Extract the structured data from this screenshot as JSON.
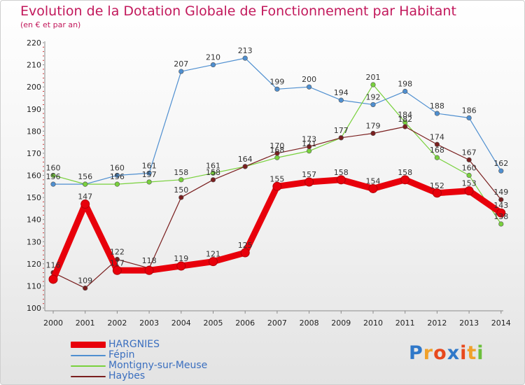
{
  "chart_data": {
    "type": "line",
    "title": "Evolution de la Dotation Globale de Fonctionnement par Habitant",
    "subtitle": "(en € et par an)",
    "xlabel": "",
    "ylabel": "",
    "ylim": [
      100,
      220
    ],
    "yticks": [
      100,
      110,
      120,
      130,
      140,
      150,
      160,
      170,
      180,
      190,
      200,
      210,
      220
    ],
    "x": [
      "2000",
      "2001",
      "2002",
      "2003",
      "2004",
      "2005",
      "2006",
      "2007",
      "2008",
      "2009",
      "2010",
      "2011",
      "2012",
      "2013",
      "2014"
    ],
    "grid": false,
    "legend_position": "bottom-left",
    "series": [
      {
        "name": "HARGNIES",
        "color": "#e8000b",
        "values": [
          113,
          147,
          117,
          117,
          119,
          121,
          125,
          155,
          157,
          158,
          154,
          158,
          152,
          153,
          143
        ]
      },
      {
        "name": "Fépin",
        "color": "#4f8fd0",
        "values": [
          156,
          156,
          160,
          161,
          207,
          210,
          213,
          199,
          200,
          194,
          192,
          198,
          188,
          186,
          162
        ]
      },
      {
        "name": "Montigny-sur-Meuse",
        "color": "#79d13d",
        "values": [
          160,
          156,
          156,
          157,
          158,
          161,
          164,
          168,
          171,
          177,
          201,
          184,
          168,
          160,
          138
        ]
      },
      {
        "name": "Haybes",
        "color": "#7a1f1f",
        "values": [
          116,
          109,
          122,
          118,
          150,
          158,
          164,
          170,
          173,
          177,
          179,
          182,
          174,
          167,
          149
        ]
      }
    ],
    "data_labels": [
      {
        "year": "2000",
        "text": "160"
      },
      {
        "year": "2000",
        "text": "156"
      },
      {
        "year": "2000",
        "text": "116"
      },
      {
        "year": "2001",
        "text": "156"
      },
      {
        "year": "2001",
        "text": "147"
      },
      {
        "year": "2001",
        "text": "109"
      },
      {
        "year": "2002",
        "text": "160"
      },
      {
        "year": "2002",
        "text": "156"
      },
      {
        "year": "2002",
        "text": "122"
      },
      {
        "year": "2002",
        "text": "117"
      },
      {
        "year": "2003",
        "text": "161"
      },
      {
        "year": "2003",
        "text": "157"
      },
      {
        "year": "2003",
        "text": "118"
      },
      {
        "year": "2004",
        "text": "207"
      },
      {
        "year": "2004",
        "text": "158"
      },
      {
        "year": "2004",
        "text": "150"
      },
      {
        "year": "2004",
        "text": "119"
      },
      {
        "year": "2005",
        "text": "210"
      },
      {
        "year": "2005",
        "text": "161"
      },
      {
        "year": "2005",
        "text": "158"
      },
      {
        "year": "2005",
        "text": "121"
      },
      {
        "year": "2006",
        "text": "213"
      },
      {
        "year": "2006",
        "text": "164"
      },
      {
        "year": "2006",
        "text": "125"
      },
      {
        "year": "2007",
        "text": "199"
      },
      {
        "year": "2007",
        "text": "170"
      },
      {
        "year": "2007",
        "text": "168"
      },
      {
        "year": "2007",
        "text": "155"
      },
      {
        "year": "2008",
        "text": "200"
      },
      {
        "year": "2008",
        "text": "173"
      },
      {
        "year": "2008",
        "text": "171"
      },
      {
        "year": "2008",
        "text": "157"
      },
      {
        "year": "2009",
        "text": "194"
      },
      {
        "year": "2009",
        "text": "177"
      },
      {
        "year": "2009",
        "text": "158"
      },
      {
        "year": "2010",
        "text": "201"
      },
      {
        "year": "2010",
        "text": "192"
      },
      {
        "year": "2010",
        "text": "179"
      },
      {
        "year": "2010",
        "text": "154"
      },
      {
        "year": "2011",
        "text": "198"
      },
      {
        "year": "2011",
        "text": "184"
      },
      {
        "year": "2011",
        "text": "182"
      },
      {
        "year": "2011",
        "text": "158"
      },
      {
        "year": "2012",
        "text": "188"
      },
      {
        "year": "2012",
        "text": "174"
      },
      {
        "year": "2012",
        "text": "168"
      },
      {
        "year": "2012",
        "text": "152"
      },
      {
        "year": "2013",
        "text": "186"
      },
      {
        "year": "2013",
        "text": "167"
      },
      {
        "year": "2013",
        "text": "160"
      },
      {
        "year": "2013",
        "text": "153"
      },
      {
        "year": "2014",
        "text": "162"
      },
      {
        "year": "2014",
        "text": "149"
      },
      {
        "year": "2014",
        "text": "143"
      },
      {
        "year": "2014",
        "text": "138"
      }
    ]
  },
  "logo": {
    "letters": [
      "P",
      "r",
      "o",
      "x",
      "i",
      "t",
      "i"
    ],
    "colors": [
      "#2f78c9",
      "#f0a12b",
      "#e8491d",
      "#2f78c9",
      "#e8491d",
      "#f0a12b",
      "#6cbf3c"
    ]
  }
}
